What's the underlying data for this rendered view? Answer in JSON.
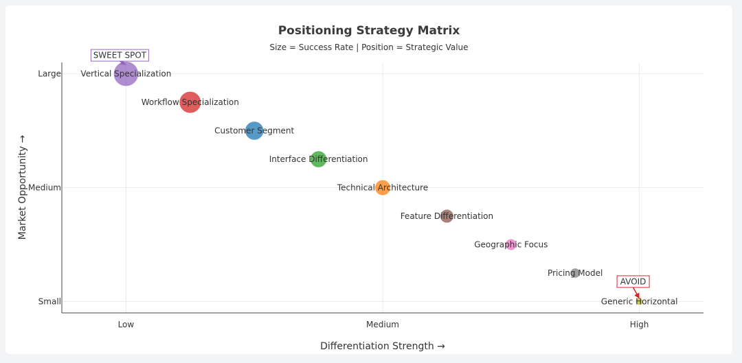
{
  "chart_data": {
    "type": "scatter",
    "title": "Positioning Strategy Matrix",
    "subtitle": "Size = Success Rate | Position = Strategic Value",
    "xlabel": "Differentiation Strength →",
    "ylabel": "Market Opportunity →",
    "xlim": [
      0.75,
      3.25
    ],
    "ylim": [
      0.9,
      3.1
    ],
    "x_ticks": [
      {
        "value": 1,
        "label": "Low"
      },
      {
        "value": 2,
        "label": "Medium"
      },
      {
        "value": 3,
        "label": "High"
      }
    ],
    "y_ticks": [
      {
        "value": 1,
        "label": "Small"
      },
      {
        "value": 2,
        "label": "Medium"
      },
      {
        "value": 3,
        "label": "Large"
      }
    ],
    "grid": true,
    "points": [
      {
        "label": "Vertical Specialization",
        "x": 1.0,
        "y": 3.0,
        "size": 95,
        "color": "#9467bd"
      },
      {
        "label": "Workflow Specialization",
        "x": 1.25,
        "y": 2.75,
        "size": 80,
        "color": "#d62728"
      },
      {
        "label": "Customer Segment",
        "x": 1.5,
        "y": 2.5,
        "size": 65,
        "color": "#1f77b4"
      },
      {
        "label": "Interface Differentiation",
        "x": 1.75,
        "y": 2.25,
        "size": 55,
        "color": "#2ca02c"
      },
      {
        "label": "Technical Architecture",
        "x": 2.0,
        "y": 2.0,
        "size": 50,
        "color": "#ff7f0e"
      },
      {
        "label": "Feature Differentiation",
        "x": 2.25,
        "y": 1.75,
        "size": 40,
        "color": "#8c564b"
      },
      {
        "label": "Geographic Focus",
        "x": 2.5,
        "y": 1.5,
        "size": 30,
        "color": "#e377c2"
      },
      {
        "label": "Pricing Model",
        "x": 2.75,
        "y": 1.25,
        "size": 22,
        "color": "#7f7f7f"
      },
      {
        "label": "Generic Horizontal",
        "x": 3.0,
        "y": 1.0,
        "size": 10,
        "color": "#bcbd22"
      }
    ],
    "annotations": [
      {
        "text": "SWEET SPOT",
        "target": 0,
        "color": "#9467bd"
      },
      {
        "text": "AVOID",
        "target": 8,
        "color": "#d62728"
      }
    ]
  }
}
